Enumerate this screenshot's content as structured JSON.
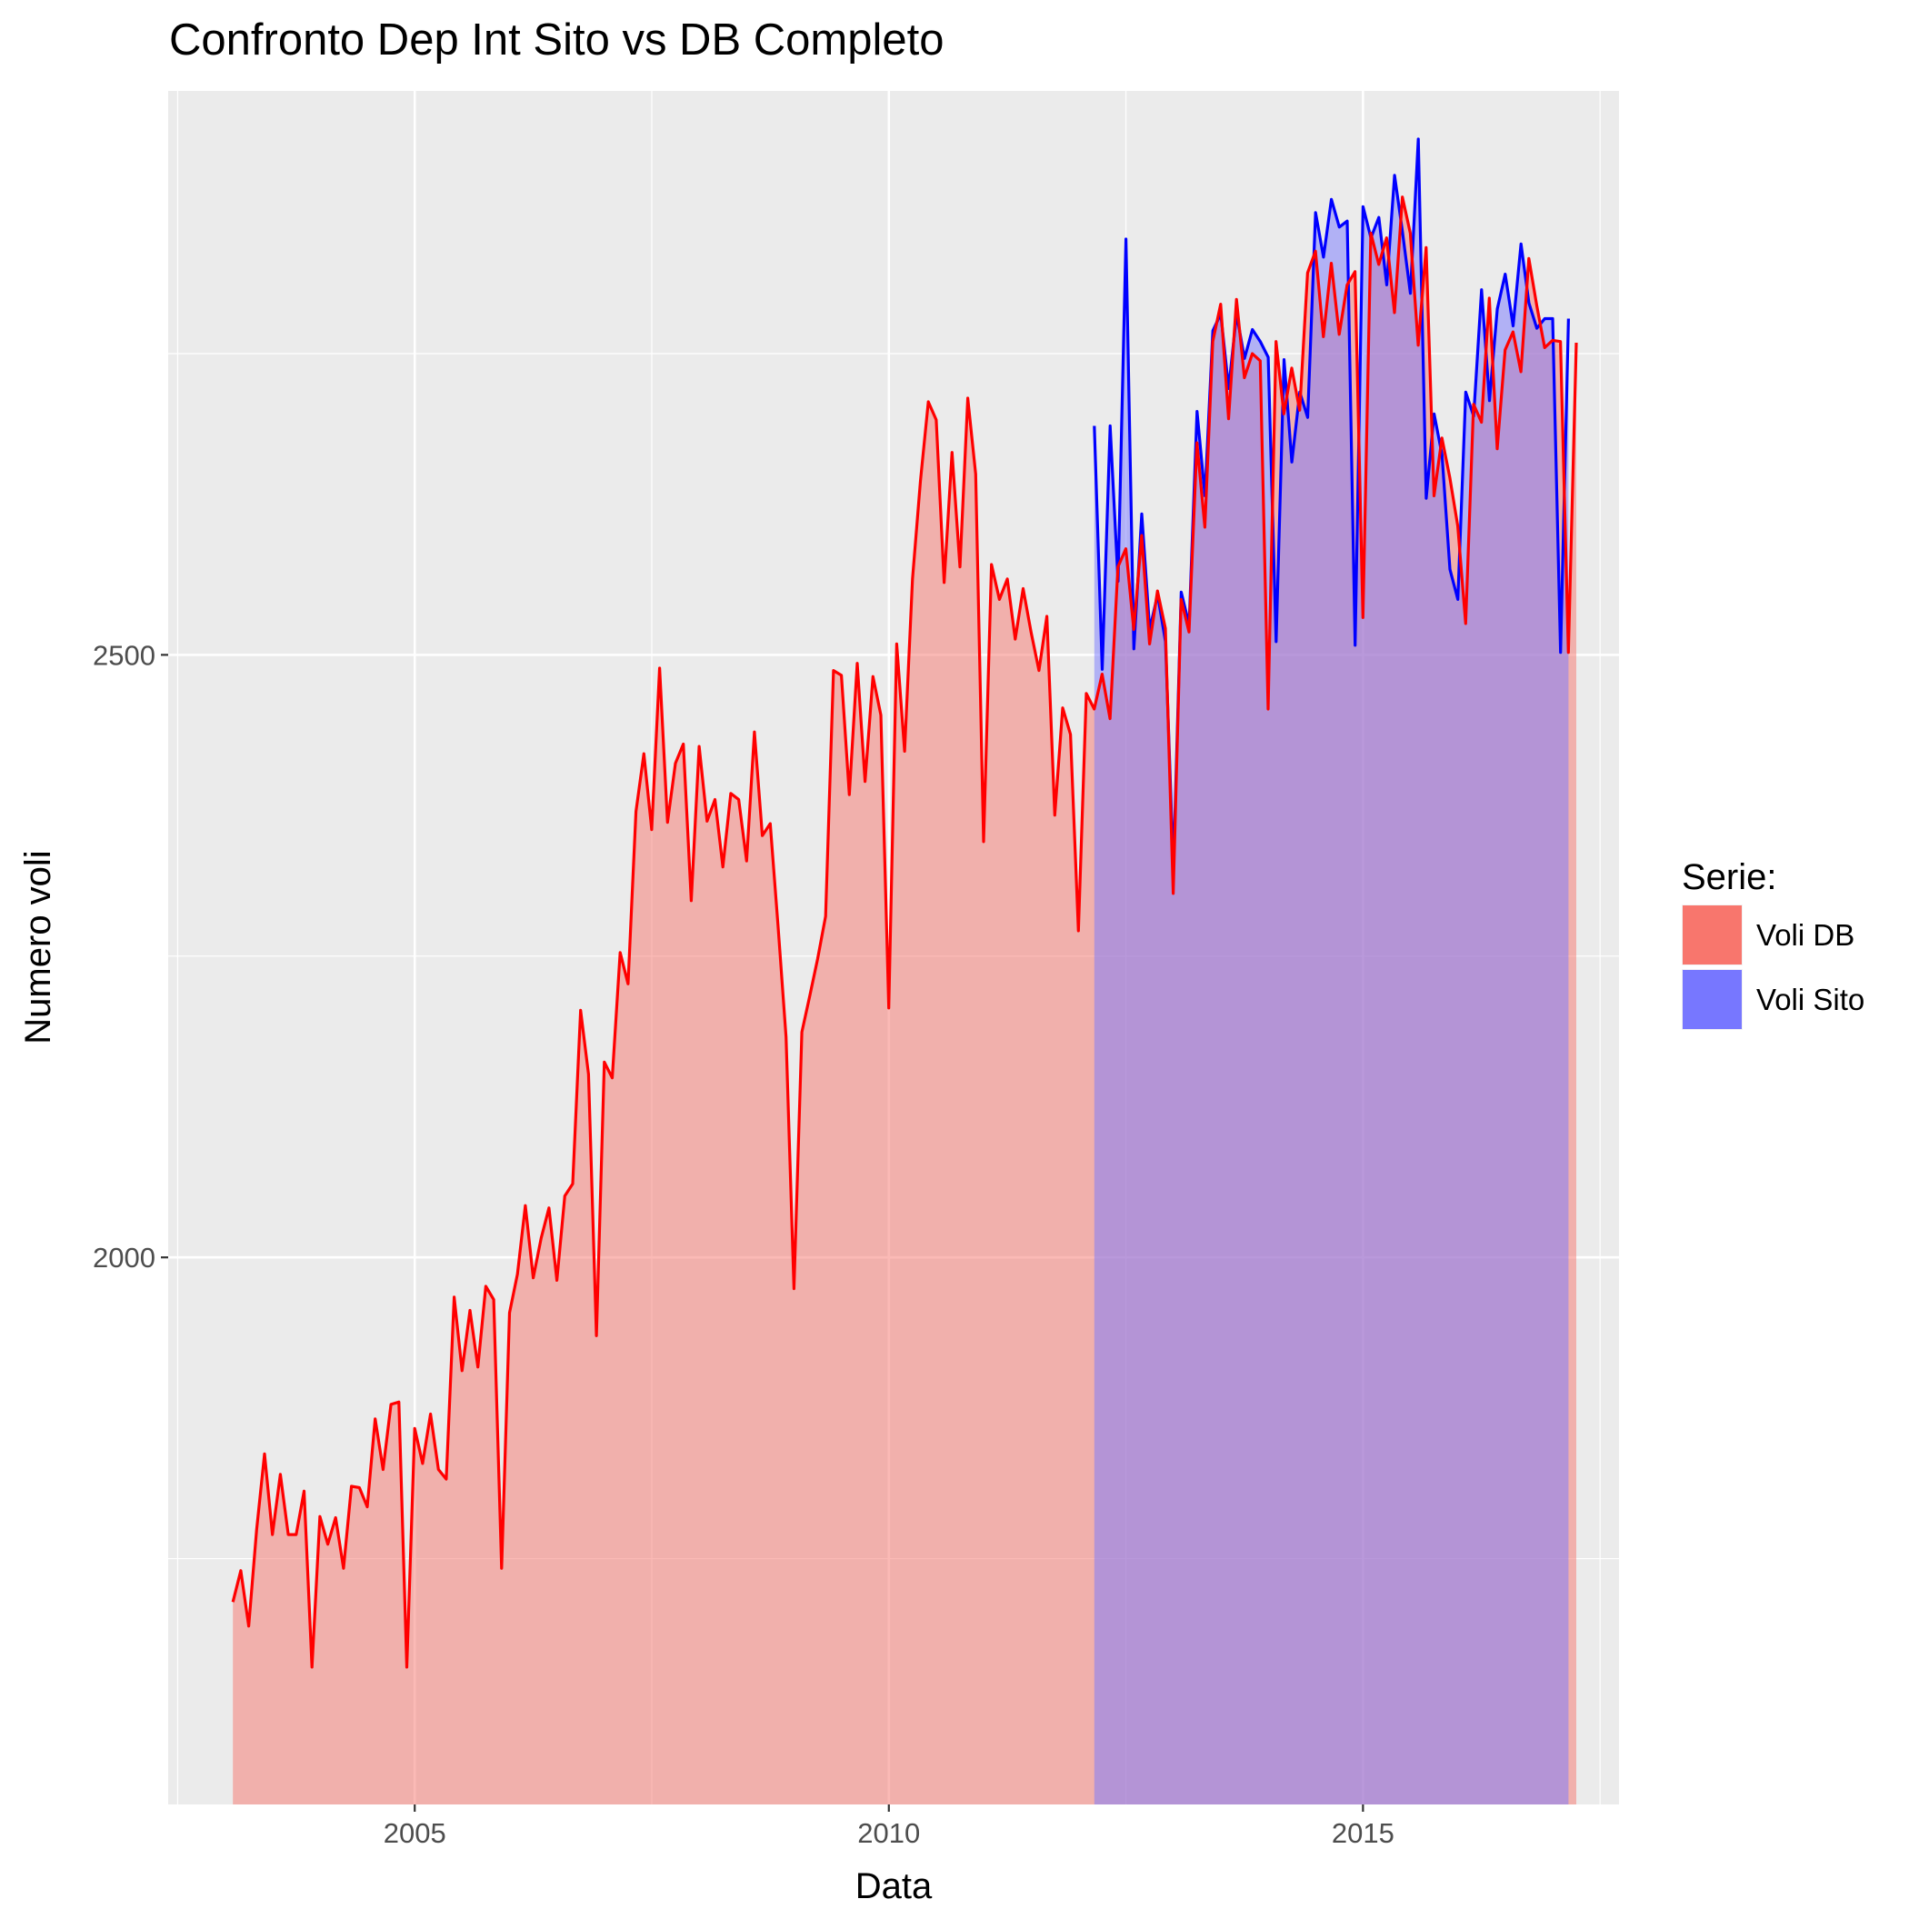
{
  "chart_data": {
    "type": "area",
    "title": "Confronto Dep Int Sito vs DB Completo",
    "xlabel": "Data",
    "ylabel": "Numero voli",
    "xlim": [
      2002.4,
      2017.7
    ],
    "ylim": [
      1546,
      2968
    ],
    "x_ticks": [
      2005,
      2010,
      2015
    ],
    "x_tick_labels": [
      "2005",
      "2010",
      "2015"
    ],
    "y_ticks": [
      2000,
      2500
    ],
    "y_tick_labels": [
      "2000",
      "2500"
    ],
    "grid": true,
    "legend": {
      "title": "Serie:",
      "position": "right"
    },
    "series": [
      {
        "name": "Voli DB",
        "fill": "#F8766D",
        "line": "#FF0000",
        "x_start": 2003.083,
        "x_step": 0.08333,
        "values": [
          1714,
          1740,
          1694,
          1774,
          1837,
          1770,
          1820,
          1770,
          1770,
          1806,
          1660,
          1785,
          1762,
          1784,
          1742,
          1810,
          1809,
          1793,
          1866,
          1824,
          1878,
          1880,
          1660,
          1858,
          1829,
          1870,
          1824,
          1816,
          1967,
          1906,
          1956,
          1909,
          1976,
          1965,
          1742,
          1954,
          1986,
          2043,
          1983,
          2016,
          2041,
          1981,
          2051,
          2061,
          2205,
          2152,
          1935,
          2162,
          2149,
          2253,
          2227,
          2370,
          2418,
          2355,
          2489,
          2361,
          2410,
          2426,
          2296,
          2424,
          2362,
          2380,
          2324,
          2385,
          2380,
          2329,
          2436,
          2350,
          2360,
          2274,
          2183,
          1974,
          2187,
          2217,
          2248,
          2283,
          2487,
          2483,
          2384,
          2493,
          2395,
          2482,
          2450,
          2207,
          2509,
          2420,
          2563,
          2644,
          2710,
          2695,
          2560,
          2668,
          2573,
          2713,
          2650,
          2345,
          2575,
          2546,
          2563,
          2513,
          2555,
          2519,
          2487,
          2532,
          2367,
          2456,
          2434,
          2271,
          2468,
          2455,
          2484,
          2447,
          2573,
          2588,
          2521,
          2599,
          2509,
          2553,
          2522,
          2302,
          2546,
          2519,
          2676,
          2606,
          2760,
          2791,
          2696,
          2795,
          2730,
          2750,
          2744,
          2455,
          2760,
          2700,
          2738,
          2703,
          2817,
          2835,
          2764,
          2825,
          2766,
          2807,
          2818,
          2531,
          2850,
          2824,
          2846,
          2784,
          2880,
          2850,
          2757,
          2838,
          2632,
          2680,
          2647,
          2607,
          2526,
          2708,
          2693,
          2796,
          2671,
          2753,
          2768,
          2735,
          2829,
          2790,
          2755,
          2761,
          2760,
          2502,
          2759
        ]
      },
      {
        "name": "Voli Sito",
        "fill": "#7777FF",
        "line": "#0000FF",
        "x_start": 2012.167,
        "x_step": 0.08333,
        "values": [
          2690,
          2488,
          2690,
          2561,
          2845,
          2505,
          2617,
          2521,
          2550,
          2511,
          2322,
          2552,
          2525,
          2702,
          2632,
          2769,
          2783,
          2721,
          2783,
          2746,
          2770,
          2760,
          2747,
          2511,
          2745,
          2660,
          2718,
          2697,
          2867,
          2830,
          2878,
          2855,
          2860,
          2508,
          2872,
          2846,
          2863,
          2807,
          2898,
          2851,
          2800,
          2928,
          2630,
          2700,
          2666,
          2571,
          2546,
          2718,
          2698,
          2803,
          2711,
          2787,
          2816,
          2773,
          2841,
          2792,
          2771,
          2779,
          2779,
          2502,
          2779
        ]
      }
    ]
  }
}
